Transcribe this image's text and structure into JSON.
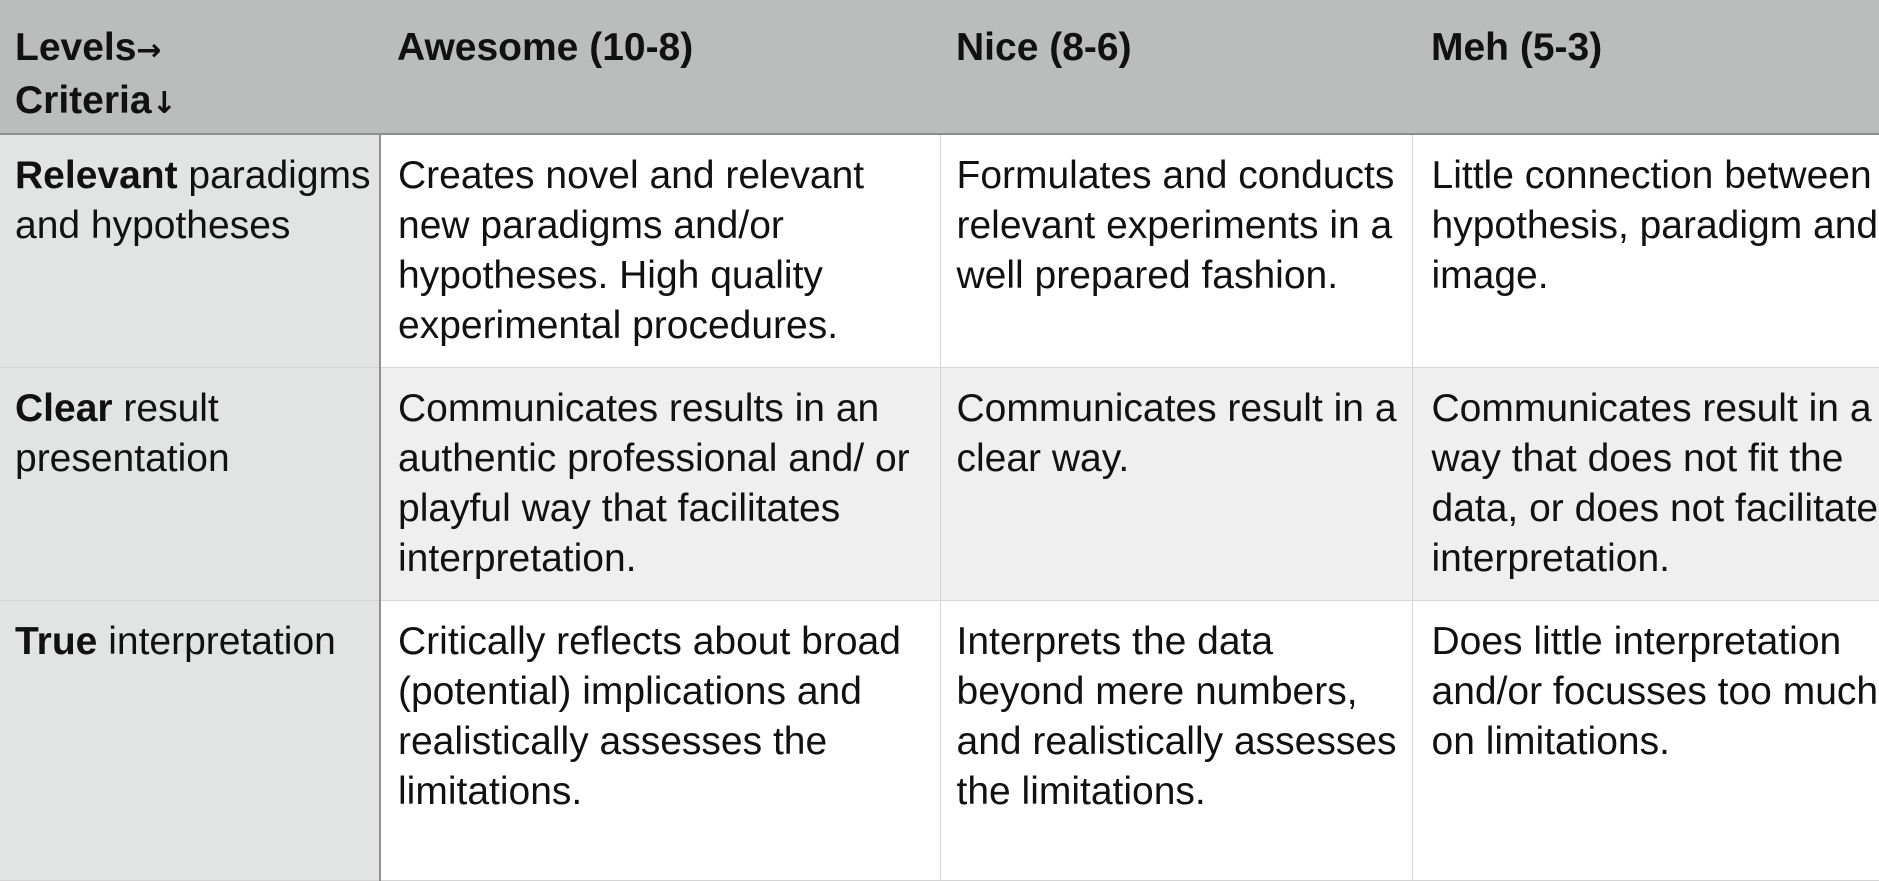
{
  "header": {
    "corner_line1": "Levels",
    "corner_arrow_right": "→",
    "corner_line2": "Criteria",
    "corner_arrow_down": "↓",
    "levels": [
      "Awesome (10-8)",
      "Nice (8-6)",
      "Meh (5-3)"
    ]
  },
  "rows": [
    {
      "criterion_bold": "Relevant",
      "criterion_rest": " paradigms and hypotheses",
      "cells": [
        "Creates novel and relevant new paradigms and/or hypotheses. High quality experimental procedures.",
        "Formulates and conducts relevant experiments in a well prepared fashion.",
        "Little connection between hypothesis, paradigm and image."
      ]
    },
    {
      "criterion_bold": "Clear",
      "criterion_rest": " result presentation",
      "cells": [
        "Communicates results in an authentic professional and/ or playful way that facilitates interpretation.",
        "Communicates result in a clear way.",
        "Communicates result in a way that does not fit the data, or does not facilitate interpretation."
      ]
    },
    {
      "criterion_bold": "True",
      "criterion_rest": " interpretation",
      "cells": [
        "Critically reflects about broad (potential) implications and realistically assesses the limitations.",
        "Interprets the data beyond mere numbers, and realistically assesses the limitations.",
        "Does little interpretation and/or focusses too much on limitations."
      ]
    }
  ],
  "colors": {
    "header_bg": "#bbbcbc",
    "criteria_bg": "#e2e3e3",
    "alt_row_bg": "#efefef"
  }
}
